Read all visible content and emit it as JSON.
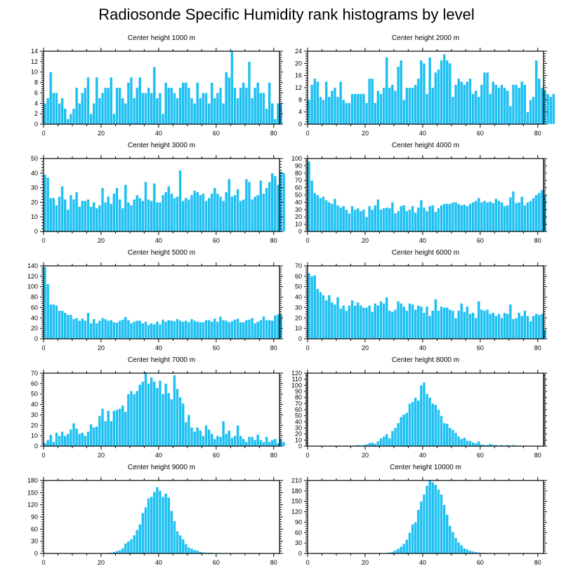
{
  "figure": {
    "title": "Radiosonde Specific Humidity rank histograms by level",
    "bar_color": "#1ec0f2",
    "bar_edge_color": "#ffffff"
  },
  "chart_data": [
    {
      "type": "bar",
      "title": "Center height 1000 m",
      "xlim": [
        0,
        82
      ],
      "ylim": [
        0,
        14
      ],
      "xticks": [
        0,
        20,
        40,
        60,
        80
      ],
      "yticks": [
        0,
        2,
        4,
        6,
        8,
        10,
        12,
        14
      ],
      "values": [
        4,
        5,
        10,
        6,
        6,
        4,
        5,
        3,
        1,
        2,
        3,
        7,
        4,
        6,
        7,
        9,
        2,
        4,
        9,
        5,
        6,
        7,
        7,
        9,
        2,
        7,
        7,
        5,
        4,
        8,
        9,
        5,
        7,
        9,
        6,
        6,
        7,
        6,
        11,
        5,
        6,
        2,
        8,
        7,
        7,
        6,
        5,
        7,
        8,
        8,
        7,
        5,
        4,
        8,
        5,
        6,
        6,
        4,
        8,
        5,
        6,
        7,
        4,
        10,
        9,
        14,
        7,
        5,
        7,
        8,
        7,
        12,
        5,
        7,
        8,
        6,
        6,
        3,
        8,
        4,
        1,
        4,
        4
      ]
    },
    {
      "type": "bar",
      "title": "Center height 2000 m",
      "xlim": [
        0,
        82
      ],
      "ylim": [
        0,
        24
      ],
      "xticks": [
        0,
        20,
        40,
        60,
        80
      ],
      "yticks": [
        0,
        4,
        8,
        12,
        16,
        20,
        24
      ],
      "values": [
        8,
        13,
        15,
        14,
        9,
        8,
        14,
        9,
        11,
        12,
        9,
        14,
        8,
        7,
        7,
        10,
        10,
        10,
        10,
        10,
        7,
        15,
        15,
        7,
        11,
        10,
        12,
        22,
        12,
        13,
        11,
        19,
        21,
        8,
        12,
        12,
        12,
        13,
        15,
        21,
        20,
        10,
        22,
        12,
        17,
        18,
        21,
        23,
        21,
        20,
        9,
        13,
        15,
        14,
        13,
        14,
        15,
        10,
        11,
        9,
        13,
        17,
        17,
        10,
        14,
        13,
        12,
        13,
        12,
        11,
        6,
        13,
        13,
        12,
        14,
        13,
        4,
        8,
        9,
        21,
        15,
        12,
        11,
        10,
        9,
        10
      ]
    },
    {
      "type": "bar",
      "title": "Center height 3000 m",
      "xlim": [
        0,
        82
      ],
      "ylim": [
        0,
        50
      ],
      "xticks": [
        0,
        20,
        40,
        60,
        80
      ],
      "yticks": [
        0,
        10,
        20,
        30,
        40,
        50
      ],
      "values": [
        39,
        37,
        23,
        23,
        18,
        24,
        31,
        22,
        15,
        25,
        22,
        27,
        17,
        21,
        21,
        22,
        17,
        20,
        16,
        18,
        30,
        20,
        24,
        19,
        26,
        30,
        22,
        16,
        32,
        20,
        18,
        22,
        25,
        23,
        21,
        34,
        22,
        21,
        33,
        20,
        20,
        25,
        27,
        31,
        26,
        23,
        24,
        42,
        21,
        23,
        22,
        25,
        28,
        27,
        25,
        26,
        21,
        23,
        26,
        30,
        26,
        24,
        21,
        27,
        36,
        24,
        25,
        29,
        21,
        22,
        36,
        34,
        22,
        24,
        25,
        35,
        26,
        30,
        34,
        40,
        38,
        32,
        41,
        40
      ]
    },
    {
      "type": "bar",
      "title": "Center height 4000 m",
      "xlim": [
        0,
        82
      ],
      "ylim": [
        0,
        100
      ],
      "xticks": [
        0,
        20,
        40,
        60,
        80
      ],
      "yticks": [
        0,
        10,
        20,
        30,
        40,
        50,
        60,
        70,
        80,
        90,
        100
      ],
      "values": [
        96,
        70,
        53,
        50,
        46,
        48,
        43,
        40,
        38,
        45,
        36,
        33,
        35,
        30,
        25,
        35,
        30,
        32,
        28,
        30,
        20,
        35,
        30,
        36,
        44,
        30,
        32,
        33,
        32,
        40,
        25,
        28,
        35,
        36,
        28,
        30,
        35,
        26,
        33,
        43,
        33,
        28,
        35,
        36,
        27,
        32,
        36,
        38,
        38,
        38,
        40,
        40,
        38,
        36,
        37,
        35,
        38,
        40,
        42,
        46,
        40,
        42,
        40,
        41,
        39,
        45,
        42,
        40,
        35,
        36,
        47,
        55,
        39,
        40,
        48,
        36,
        40,
        42,
        46,
        50,
        53,
        57,
        50
      ]
    },
    {
      "type": "bar",
      "title": "Center height 5000 m",
      "xlim": [
        0,
        82
      ],
      "ylim": [
        0,
        140
      ],
      "xticks": [
        0,
        20,
        40,
        60,
        80
      ],
      "yticks": [
        0,
        20,
        40,
        60,
        80,
        100,
        120,
        140
      ],
      "values": [
        138,
        105,
        66,
        66,
        64,
        54,
        54,
        50,
        46,
        46,
        38,
        40,
        35,
        39,
        35,
        50,
        30,
        38,
        30,
        35,
        40,
        38,
        35,
        36,
        32,
        31,
        35,
        37,
        42,
        36,
        30,
        33,
        35,
        35,
        30,
        33,
        27,
        30,
        28,
        33,
        28,
        37,
        33,
        36,
        35,
        34,
        38,
        35,
        33,
        35,
        32,
        38,
        35,
        33,
        32,
        32,
        36,
        36,
        33,
        39,
        33,
        43,
        36,
        35,
        32,
        34,
        37,
        39,
        32,
        32,
        36,
        37,
        40,
        30,
        33,
        36,
        43,
        36,
        36,
        35,
        45,
        47,
        47
      ]
    },
    {
      "type": "bar",
      "title": "Center height 6000 m",
      "xlim": [
        0,
        82
      ],
      "ylim": [
        0,
        70
      ],
      "xticks": [
        0,
        20,
        40,
        60,
        80
      ],
      "yticks": [
        0,
        10,
        20,
        30,
        40,
        50,
        60,
        70
      ],
      "values": [
        63,
        60,
        61,
        48,
        45,
        42,
        37,
        42,
        35,
        33,
        40,
        29,
        32,
        27,
        32,
        37,
        32,
        35,
        32,
        30,
        30,
        32,
        26,
        34,
        32,
        36,
        34,
        40,
        27,
        26,
        28,
        36,
        34,
        31,
        27,
        34,
        33,
        28,
        32,
        31,
        25,
        31,
        22,
        27,
        38,
        27,
        31,
        30,
        30,
        28,
        27,
        20,
        27,
        34,
        26,
        31,
        24,
        25,
        20,
        36,
        28,
        27,
        28,
        24,
        25,
        22,
        24,
        20,
        25,
        24,
        33,
        19,
        20,
        25,
        22,
        27,
        22,
        17,
        22,
        24,
        23,
        24,
        9
      ]
    },
    {
      "type": "bar",
      "title": "Center height 7000 m",
      "xlim": [
        0,
        82
      ],
      "ylim": [
        0,
        70
      ],
      "xticks": [
        0,
        20,
        40,
        60,
        80
      ],
      "yticks": [
        0,
        10,
        20,
        30,
        40,
        50,
        60,
        70
      ],
      "values": [
        3,
        6,
        11,
        4,
        13,
        10,
        14,
        10,
        12,
        16,
        22,
        17,
        12,
        13,
        10,
        14,
        21,
        18,
        19,
        29,
        36,
        24,
        34,
        24,
        34,
        35,
        36,
        39,
        33,
        50,
        53,
        50,
        53,
        59,
        62,
        71,
        60,
        66,
        62,
        56,
        63,
        50,
        60,
        51,
        45,
        68,
        55,
        47,
        41,
        23,
        30,
        18,
        14,
        18,
        15,
        10,
        20,
        16,
        12,
        7,
        10,
        9,
        24,
        12,
        15,
        8,
        10,
        20,
        10,
        7,
        4,
        9,
        9,
        6,
        11,
        6,
        4,
        9,
        4,
        6,
        7,
        3,
        7,
        4
      ]
    },
    {
      "type": "bar",
      "title": "Center height 8000 m",
      "xlim": [
        0,
        82
      ],
      "ylim": [
        0,
        120
      ],
      "xticks": [
        0,
        20,
        40,
        60,
        80
      ],
      "yticks": [
        0,
        10,
        20,
        30,
        40,
        50,
        60,
        70,
        80,
        90,
        100,
        110,
        120
      ],
      "values": [
        0,
        0,
        0,
        0,
        0,
        0,
        0,
        0,
        0,
        0,
        0,
        0,
        0,
        1,
        0,
        1,
        1,
        2,
        1,
        2,
        3,
        5,
        6,
        4,
        8,
        13,
        16,
        20,
        13,
        25,
        30,
        38,
        48,
        52,
        55,
        70,
        73,
        80,
        75,
        100,
        105,
        86,
        80,
        70,
        68,
        60,
        50,
        38,
        37,
        30,
        27,
        22,
        16,
        12,
        14,
        9,
        9,
        6,
        5,
        8,
        3,
        2,
        2,
        4,
        2,
        2,
        1,
        2,
        1,
        2,
        1,
        2,
        1,
        1,
        0,
        1,
        1,
        0,
        0,
        0,
        0,
        0,
        0
      ]
    },
    {
      "type": "bar",
      "title": "Center height 9000 m",
      "xlim": [
        0,
        82
      ],
      "ylim": [
        0,
        180
      ],
      "xticks": [
        0,
        20,
        40,
        60,
        80
      ],
      "yticks": [
        0,
        30,
        60,
        90,
        120,
        150,
        180
      ],
      "values": [
        0,
        0,
        0,
        0,
        0,
        0,
        0,
        0,
        0,
        0,
        0,
        0,
        0,
        0,
        0,
        0,
        0,
        0,
        0,
        0,
        1,
        1,
        2,
        2,
        4,
        6,
        8,
        13,
        25,
        30,
        35,
        45,
        58,
        72,
        100,
        114,
        136,
        140,
        152,
        164,
        155,
        140,
        148,
        138,
        105,
        80,
        55,
        45,
        35,
        23,
        15,
        12,
        9,
        7,
        4,
        3,
        2,
        2,
        2,
        1,
        1,
        1,
        1,
        0,
        0,
        0,
        0,
        0,
        0,
        0,
        0,
        0,
        0,
        0,
        0,
        0,
        0,
        0,
        0,
        0,
        0,
        0,
        0
      ]
    },
    {
      "type": "bar",
      "title": "Center height 10000 m",
      "xlim": [
        0,
        82
      ],
      "ylim": [
        0,
        210
      ],
      "xticks": [
        0,
        20,
        40,
        60,
        80
      ],
      "yticks": [
        0,
        30,
        60,
        90,
        120,
        150,
        180,
        210
      ],
      "values": [
        0,
        0,
        0,
        0,
        0,
        0,
        0,
        0,
        0,
        0,
        0,
        0,
        0,
        0,
        0,
        0,
        0,
        0,
        0,
        0,
        0,
        0,
        0,
        0,
        0,
        1,
        1,
        2,
        3,
        5,
        9,
        14,
        20,
        28,
        40,
        60,
        84,
        90,
        126,
        150,
        170,
        195,
        212,
        205,
        198,
        184,
        170,
        140,
        112,
        80,
        62,
        45,
        32,
        24,
        15,
        12,
        8,
        6,
        4,
        3,
        2,
        2,
        1,
        1,
        1,
        0,
        0,
        0,
        0,
        0,
        0,
        0,
        0,
        0,
        0,
        0,
        0,
        0,
        0,
        0,
        0,
        0,
        0
      ]
    }
  ]
}
